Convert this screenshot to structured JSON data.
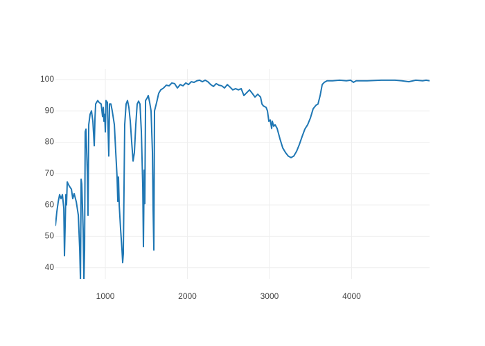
{
  "chart_data": {
    "type": "line",
    "color": "#1f77b4",
    "grid": true,
    "x": [
      392,
      409,
      426,
      443,
      460,
      477,
      494,
      502,
      519,
      527,
      536,
      561,
      587,
      603,
      620,
      646,
      671,
      688,
      697,
      705,
      713,
      730,
      739,
      747,
      755,
      764,
      781,
      789,
      798,
      814,
      831,
      848,
      865,
      874,
      882,
      907,
      924,
      949,
      966,
      975,
      983,
      992,
      1000,
      1008,
      1025,
      1042,
      1051,
      1068,
      1084,
      1110,
      1127,
      1143,
      1152,
      1160,
      1169,
      1186,
      1203,
      1211,
      1219,
      1236,
      1253,
      1270,
      1287,
      1304,
      1321,
      1338,
      1354,
      1371,
      1388,
      1405,
      1422,
      1439,
      1456,
      1464,
      1473,
      1481,
      1490,
      1507,
      1523,
      1540,
      1557,
      1574,
      1582,
      1591,
      1599,
      1625,
      1650,
      1675,
      1709,
      1743,
      1777,
      1810,
      1844,
      1878,
      1912,
      1946,
      1980,
      2014,
      2047,
      2081,
      2115,
      2148,
      2182,
      2216,
      2249,
      2283,
      2317,
      2351,
      2384,
      2418,
      2452,
      2486,
      2519,
      2553,
      2587,
      2621,
      2655,
      2688,
      2722,
      2756,
      2790,
      2823,
      2857,
      2891,
      2908,
      2925,
      2959,
      2975,
      2992,
      3009,
      3026,
      3034,
      3051,
      3068,
      3093,
      3127,
      3161,
      3195,
      3228,
      3262,
      3296,
      3330,
      3364,
      3397,
      3431,
      3465,
      3499,
      3532,
      3566,
      3591,
      3617,
      3642,
      3667,
      3701,
      3768,
      3853,
      3937,
      3988,
      4022,
      4056,
      4191,
      4360,
      4529,
      4613,
      4697,
      4782,
      4866,
      4908,
      4950
    ],
    "values": [
      53.3,
      57.8,
      61,
      63.3,
      62,
      63.3,
      58.9,
      43.8,
      63.3,
      60,
      67.3,
      66,
      65,
      62,
      63.6,
      61,
      56.7,
      45.6,
      36,
      68.2,
      66.7,
      52,
      35,
      45.6,
      83.3,
      84.2,
      70,
      56.7,
      85.6,
      88.9,
      90,
      86.7,
      78.9,
      87.8,
      92.2,
      93.3,
      92.7,
      92.2,
      88.2,
      91.1,
      86.7,
      88.9,
      83.3,
      93.3,
      92.7,
      75.6,
      92.2,
      92.2,
      90,
      85.6,
      76.7,
      68.9,
      61.1,
      68.9,
      60,
      52.2,
      45.6,
      41.6,
      44.4,
      85.6,
      92.2,
      93.3,
      91.1,
      86.7,
      80,
      74,
      76.7,
      85.6,
      92.2,
      93.1,
      92.2,
      83.3,
      65.6,
      46.7,
      71.1,
      60.4,
      93.3,
      94,
      94.9,
      92.7,
      90,
      76.7,
      58.9,
      45.6,
      90,
      92.7,
      95.6,
      96.7,
      97.3,
      98.2,
      98,
      98.9,
      98.7,
      97.3,
      98.4,
      98,
      98.9,
      98.4,
      99.3,
      99.1,
      99.6,
      99.8,
      99.3,
      99.8,
      99.3,
      98.4,
      97.8,
      98.7,
      98.2,
      98,
      97.3,
      98.4,
      97.6,
      96.7,
      97.1,
      96.7,
      97.1,
      94.9,
      95.8,
      96.7,
      95.6,
      94.4,
      95.3,
      94.4,
      92.2,
      91.6,
      91.1,
      90,
      86.7,
      87.1,
      84.4,
      86.7,
      85.1,
      85.6,
      84.4,
      81.1,
      78.2,
      76.7,
      75.6,
      75.1,
      75.6,
      77.1,
      79.3,
      81.8,
      84.2,
      85.6,
      87.8,
      90.7,
      91.8,
      92.2,
      94.9,
      98.4,
      99.1,
      99.6,
      99.6,
      99.8,
      99.6,
      99.8,
      99.1,
      99.6,
      99.6,
      99.8,
      99.8,
      99.6,
      99.3,
      99.8,
      99.6,
      99.8,
      99.6
    ],
    "xlim": [
      392,
      4950
    ],
    "xticks": [
      1000,
      2000,
      3000,
      4000
    ],
    "ylim": [
      36.4,
      103.3
    ],
    "yticks": [
      40,
      50,
      60,
      70,
      80,
      90,
      100
    ]
  }
}
